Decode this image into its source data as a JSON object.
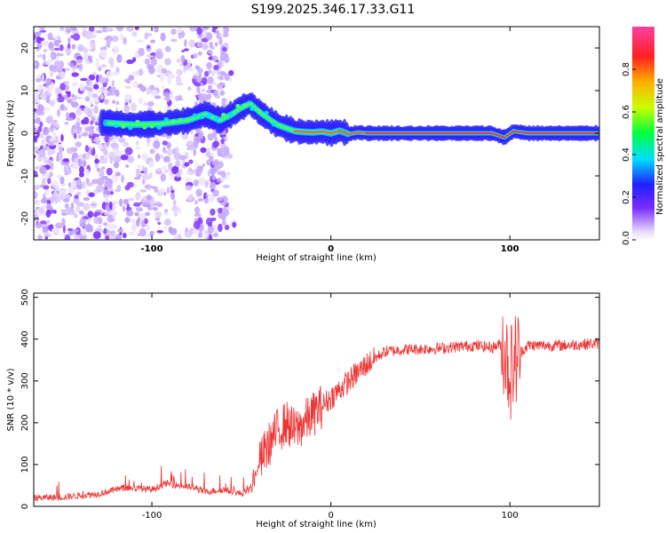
{
  "chart_data": [
    {
      "type": "heatmap",
      "title": "S199.2025.346.17.33.G11",
      "xlabel": "Height of straight line (km)",
      "ylabel": "Frequency (Hz)",
      "xlim": [
        -166,
        150
      ],
      "ylim": [
        -25,
        25
      ],
      "x_ticks": [
        -100,
        0,
        100
      ],
      "y_ticks": [
        -20,
        -10,
        0,
        10,
        20
      ],
      "ridge": {
        "x": [
          -128,
          -110,
          -95,
          -80,
          -70,
          -62,
          -55,
          -50,
          -45,
          -40,
          -35,
          -30,
          -25,
          -20,
          -15,
          -10,
          -5,
          0,
          5,
          10,
          15,
          20,
          50,
          90,
          97,
          102,
          110,
          150
        ],
        "freq": [
          2.5,
          2,
          2.2,
          3,
          4.5,
          3,
          4.5,
          6,
          7,
          5,
          3.5,
          2,
          1.2,
          0.5,
          0.3,
          0.2,
          0.4,
          0,
          0.6,
          -0.2,
          0.2,
          0,
          0,
          0,
          -1,
          0.5,
          0,
          0
        ]
      },
      "colorbar": {
        "label": "Normalized spectral amplitude",
        "ticks": [
          "0.0",
          "0.2",
          "0.4",
          "0.6",
          "0.8"
        ]
      }
    },
    {
      "type": "line",
      "title": "",
      "xlabel": "Height of straight line (km)",
      "ylabel": "SNR (10 * v/v)",
      "xlim": [
        -166,
        150
      ],
      "ylim": [
        0,
        510
      ],
      "x_ticks": [
        -100,
        0,
        100
      ],
      "y_ticks": [
        0,
        100,
        200,
        300,
        400,
        500
      ],
      "series": [
        {
          "name": "SNR",
          "color": "#ee3333",
          "x": [
            -166,
            -150,
            -130,
            -115,
            -100,
            -92,
            -85,
            -78,
            -70,
            -60,
            -50,
            -45,
            -40,
            -37,
            -33,
            -30,
            -25,
            -20,
            -15,
            -10,
            -5,
            0,
            5,
            10,
            15,
            20,
            25,
            30,
            40,
            60,
            80,
            90,
            96,
            100,
            104,
            110,
            130,
            150
          ],
          "values": [
            20,
            22,
            30,
            45,
            40,
            55,
            50,
            45,
            35,
            40,
            30,
            40,
            100,
            130,
            160,
            180,
            200,
            180,
            200,
            220,
            240,
            260,
            280,
            300,
            320,
            340,
            355,
            370,
            375,
            378,
            385,
            380,
            390,
            320,
            360,
            385,
            385,
            390
          ]
        }
      ]
    }
  ]
}
